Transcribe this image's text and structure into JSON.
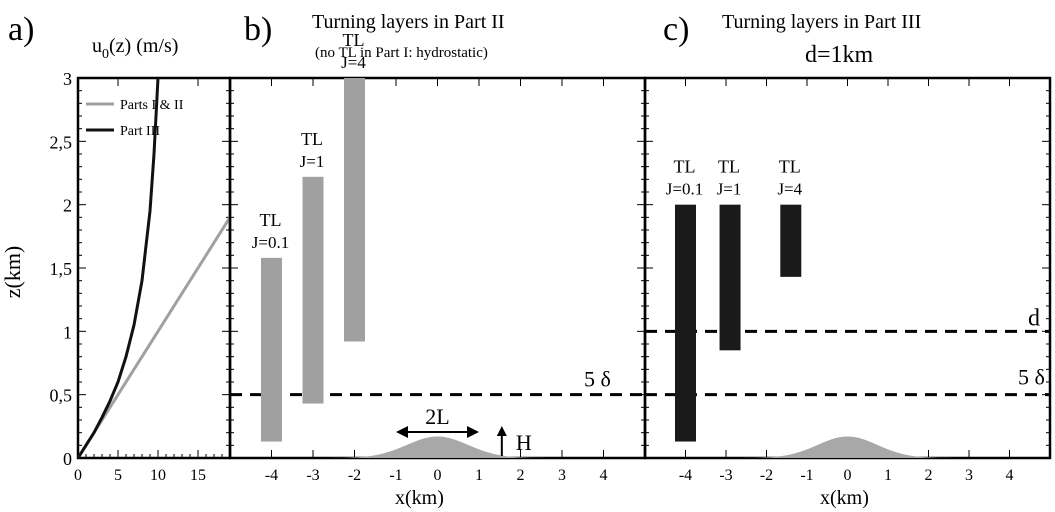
{
  "panels": {
    "a": {
      "label": "a)",
      "title": "u",
      "title_sub": "0",
      "title_rest": "(z) (m/s)",
      "ylabel": "z(km)"
    },
    "b": {
      "label": "b)",
      "title": "Turning layers in Part II",
      "subtitle": "(no TL in Part I: hydrostatic)",
      "xlabel": "x(km)",
      "dash_label": "5 δ",
      "width_label": "2L",
      "height_label": "H"
    },
    "c": {
      "label": "c)",
      "title": "Turning layers in Part III",
      "subtitle": "d=1km",
      "xlabel": "x(km)",
      "dash_label_d": "d",
      "dash_label_delta": "5 δ"
    }
  },
  "chart_data": [
    {
      "type": "line",
      "panel": "a",
      "xlim": [
        0,
        19
      ],
      "ylim": [
        0,
        3
      ],
      "xticks": [
        "0",
        "5",
        "10",
        "15"
      ],
      "yticks": [
        "0",
        "0,5",
        "1",
        "1,5",
        "2",
        "2,5",
        "3"
      ],
      "legend_placement": "top-left",
      "series": [
        {
          "name": "Parts I & II",
          "color": "#a0a0a0",
          "x": [
            0,
            19
          ],
          "y": [
            0,
            1.9
          ]
        },
        {
          "name": "Part III",
          "color": "#111111",
          "x": [
            0,
            1,
            2,
            3,
            4,
            5,
            6,
            7,
            8,
            9,
            9.5,
            10
          ],
          "y": [
            0,
            0.1,
            0.2,
            0.32,
            0.45,
            0.6,
            0.8,
            1.05,
            1.4,
            1.95,
            2.4,
            3.0
          ]
        }
      ]
    },
    {
      "type": "bar",
      "panel": "b",
      "xlim": [
        -5,
        5
      ],
      "ylim": [
        0,
        3
      ],
      "xticks": [
        "-4",
        "-3",
        "-2",
        "-1",
        "0",
        "1",
        "2",
        "3",
        "4"
      ],
      "dashed_line_z": 0.5,
      "hill": {
        "center_x": 0,
        "height_km": 0.17,
        "halfwidth_km": 1
      },
      "bars": [
        {
          "label": "TL",
          "j": "J=0.1",
          "x": -4,
          "z_bottom": 0.13,
          "z_top": 1.58,
          "color": "#a0a0a0"
        },
        {
          "label": "TL",
          "j": "J=1",
          "x": -3,
          "z_bottom": 0.43,
          "z_top": 2.22,
          "color": "#a0a0a0"
        },
        {
          "label": "TL",
          "j": "J=4",
          "x": -2,
          "z_bottom": 0.92,
          "z_top": 3.0,
          "color": "#a0a0a0"
        }
      ]
    },
    {
      "type": "bar",
      "panel": "c",
      "xlim": [
        -5,
        5
      ],
      "ylim": [
        0,
        3
      ],
      "xticks": [
        "-4",
        "-3",
        "-2",
        "-1",
        "0",
        "1",
        "2",
        "3",
        "4"
      ],
      "dashed_lines_z": [
        1.0,
        0.5
      ],
      "hill": {
        "center_x": 0,
        "height_km": 0.17,
        "halfwidth_km": 1
      },
      "bars": [
        {
          "label": "TL",
          "j": "J=0.1",
          "x": -4,
          "z_bottom": 0.13,
          "z_top": 2.0,
          "color": "#1a1a1a"
        },
        {
          "label": "TL",
          "j": "J=1",
          "x": -2.9,
          "z_bottom": 0.85,
          "z_top": 2.0,
          "color": "#1a1a1a"
        },
        {
          "label": "TL",
          "j": "J=4",
          "x": -1.4,
          "z_bottom": 1.43,
          "z_top": 2.0,
          "color": "#1a1a1a"
        }
      ]
    }
  ]
}
